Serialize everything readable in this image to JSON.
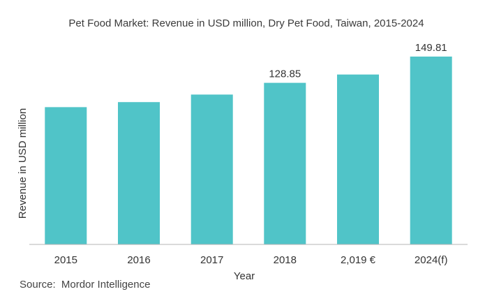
{
  "chart_data": {
    "type": "bar",
    "title": "Pet Food Market: Revenue in USD million, Dry Pet Food, Taiwan, 2015-2024",
    "xlabel": "Year",
    "ylabel": "Revenue in USD million",
    "categories": [
      "2015",
      "2016",
      "2017",
      "2018",
      "2,019 €",
      "2024(f)"
    ],
    "values": [
      109.5,
      113.5,
      119.5,
      128.85,
      135.5,
      149.81
    ],
    "data_labels": [
      "",
      "",
      "",
      "128.85",
      "",
      "149.81"
    ],
    "ylim": [
      0,
      149.81
    ],
    "grid": false,
    "legend": "none",
    "bar_color": "#50c4c8",
    "axis_color": "#b5b5b5"
  },
  "source": {
    "label": "Source:",
    "name": "Mordor Intelligence"
  }
}
